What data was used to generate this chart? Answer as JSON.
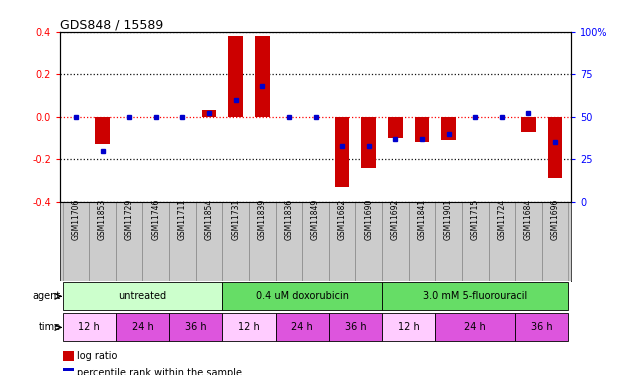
{
  "title": "GDS848 / 15589",
  "samples": [
    "GSM11706",
    "GSM11853",
    "GSM11729",
    "GSM11746",
    "GSM11711",
    "GSM11854",
    "GSM11731",
    "GSM11839",
    "GSM11836",
    "GSM11849",
    "GSM11682",
    "GSM11690",
    "GSM11692",
    "GSM11841",
    "GSM11901",
    "GSM11715",
    "GSM11724",
    "GSM11684",
    "GSM11696"
  ],
  "log_ratio": [
    0.0,
    -0.13,
    0.0,
    0.0,
    0.0,
    0.03,
    0.38,
    0.38,
    0.0,
    0.0,
    -0.33,
    -0.24,
    -0.1,
    -0.12,
    -0.11,
    0.0,
    0.0,
    -0.07,
    -0.29
  ],
  "percentile": [
    50,
    30,
    50,
    50,
    50,
    52,
    60,
    68,
    50,
    50,
    33,
    33,
    37,
    37,
    40,
    50,
    50,
    52,
    35
  ],
  "agents": [
    {
      "label": "untreated",
      "start": 0,
      "end": 6
    },
    {
      "label": "0.4 uM doxorubicin",
      "start": 6,
      "end": 12
    },
    {
      "label": "3.0 mM 5-fluorouracil",
      "start": 12,
      "end": 19
    }
  ],
  "agent_colors": [
    "#ccffcc",
    "#66dd66",
    "#66dd66"
  ],
  "times": [
    {
      "label": "12 h",
      "start": 0,
      "end": 2
    },
    {
      "label": "24 h",
      "start": 2,
      "end": 4
    },
    {
      "label": "36 h",
      "start": 4,
      "end": 6
    },
    {
      "label": "12 h",
      "start": 6,
      "end": 8
    },
    {
      "label": "24 h",
      "start": 8,
      "end": 10
    },
    {
      "label": "36 h",
      "start": 10,
      "end": 12
    },
    {
      "label": "12 h",
      "start": 12,
      "end": 14
    },
    {
      "label": "24 h",
      "start": 14,
      "end": 17
    },
    {
      "label": "36 h",
      "start": 17,
      "end": 19
    }
  ],
  "time_colors": [
    "#ffccff",
    "#dd55dd",
    "#dd55dd",
    "#ffccff",
    "#dd55dd",
    "#dd55dd",
    "#ffccff",
    "#dd55dd",
    "#dd55dd"
  ],
  "bar_color": "#cc0000",
  "dot_color": "#0000cc",
  "zero_line_color": "#ff0000",
  "grid_color": "#111111",
  "ylim": [
    -0.4,
    0.4
  ],
  "y2lim": [
    0,
    100
  ],
  "yticks": [
    -0.4,
    -0.2,
    0.0,
    0.2,
    0.4
  ],
  "y2ticks": [
    0,
    25,
    50,
    75,
    100
  ],
  "bg_color": "#ffffff",
  "sample_label_bg": "#cccccc"
}
